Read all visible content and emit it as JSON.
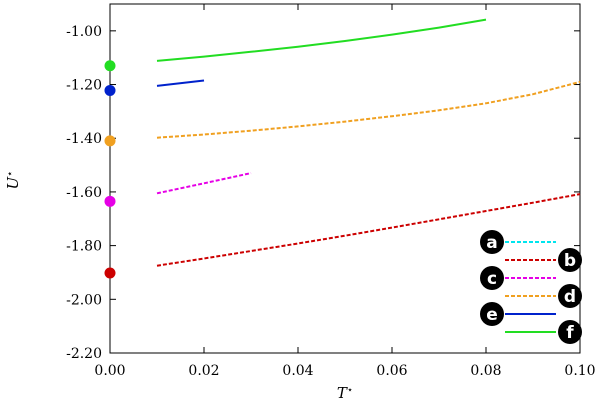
{
  "chart_data": {
    "type": "line",
    "xlabel": "T*",
    "ylabel": "U*",
    "xlim": [
      0.0,
      0.1
    ],
    "ylim": [
      -2.2,
      -0.9
    ],
    "x_ticks": [
      "0.00",
      "0.02",
      "0.04",
      "0.06",
      "0.08",
      "0.10"
    ],
    "y_ticks": [
      "-1.00",
      "-1.20",
      "-1.40",
      "-1.60",
      "-1.80",
      "-2.00",
      "-2.20"
    ],
    "grid": false,
    "legend_position": "bottom-right",
    "series": [
      {
        "name": "a",
        "color": "#00e5ee",
        "dash": "dashed",
        "x": [],
        "y": []
      },
      {
        "name": "b",
        "color": "#cc0000",
        "dash": "dashed",
        "x": [
          0.01,
          0.02,
          0.03,
          0.04,
          0.05,
          0.06,
          0.07,
          0.08,
          0.09,
          0.1
        ],
        "y": [
          -1.875,
          -1.848,
          -1.82,
          -1.792,
          -1.763,
          -1.733,
          -1.702,
          -1.671,
          -1.64,
          -1.608
        ]
      },
      {
        "name": "c",
        "color": "#e600e6",
        "dash": "dashed",
        "x": [
          0.01,
          0.02,
          0.03
        ],
        "y": [
          -1.605,
          -1.568,
          -1.53
        ]
      },
      {
        "name": "d",
        "color": "#f0a020",
        "dash": "dashed",
        "x": [
          0.01,
          0.02,
          0.03,
          0.04,
          0.05,
          0.06,
          0.07,
          0.08,
          0.09,
          0.1
        ],
        "y": [
          -1.398,
          -1.386,
          -1.372,
          -1.356,
          -1.338,
          -1.318,
          -1.296,
          -1.27,
          -1.236,
          -1.19
        ]
      },
      {
        "name": "e",
        "color": "#0022cc",
        "dash": "solid",
        "x": [
          0.01,
          0.02
        ],
        "y": [
          -1.205,
          -1.185
        ]
      },
      {
        "name": "f",
        "color": "#22dd22",
        "dash": "solid",
        "x": [
          0.01,
          0.02,
          0.03,
          0.04,
          0.05,
          0.06,
          0.07,
          0.08
        ],
        "y": [
          -1.112,
          -1.096,
          -1.078,
          -1.059,
          -1.038,
          -1.014,
          -0.988,
          -0.958
        ]
      }
    ],
    "points_at_zero": [
      {
        "x": 0.0,
        "y": -1.13,
        "color": "#22dd22"
      },
      {
        "x": 0.0,
        "y": -1.222,
        "color": "#0022cc"
      },
      {
        "x": 0.0,
        "y": -1.41,
        "color": "#f0a020"
      },
      {
        "x": 0.0,
        "y": -1.635,
        "color": "#e600e6"
      },
      {
        "x": 0.0,
        "y": -1.902,
        "color": "#cc0000"
      }
    ]
  }
}
